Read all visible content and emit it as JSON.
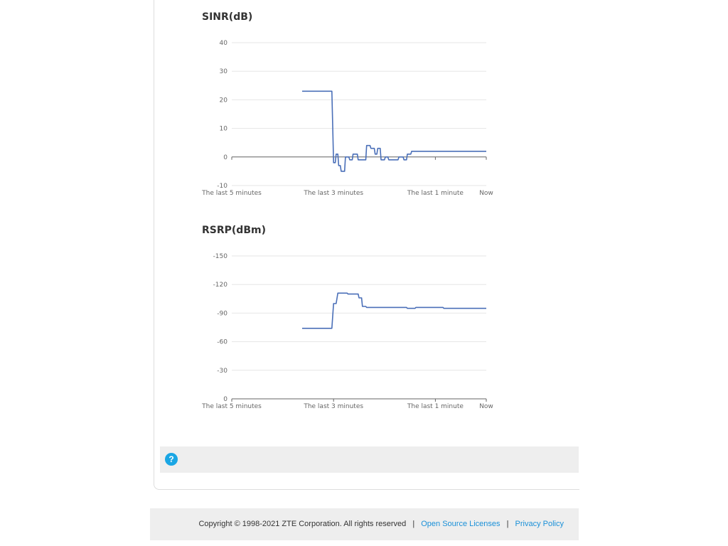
{
  "charts": [
    {
      "id": "sinr",
      "title": "SINR(dB)",
      "type": "line",
      "ylim": [
        -10,
        40
      ],
      "yticks": [
        40,
        30,
        20,
        10,
        0,
        -10
      ],
      "xticks": [
        "The last 5 minutes",
        "The last 3 minutes",
        "The last 1 minute",
        "Now"
      ],
      "xlim": [
        -300,
        0
      ],
      "series_color": "#4a6fb8",
      "series": [
        {
          "points": [
            [
              -217,
              23
            ],
            [
              -182,
              23
            ],
            [
              -180,
              -2
            ],
            [
              -178,
              -2
            ],
            [
              -177,
              1
            ],
            [
              -175,
              1
            ],
            [
              -174,
              -3
            ],
            [
              -172,
              -3
            ],
            [
              -171,
              -5
            ],
            [
              -167,
              -5
            ],
            [
              -166,
              0
            ],
            [
              -162,
              0
            ],
            [
              -161,
              -1
            ],
            [
              -158,
              -1
            ],
            [
              -157,
              1
            ],
            [
              -152,
              1
            ],
            [
              -151,
              -1
            ],
            [
              -142,
              -1
            ],
            [
              -141,
              4
            ],
            [
              -137,
              4
            ],
            [
              -136,
              3
            ],
            [
              -132,
              3
            ],
            [
              -131,
              1
            ],
            [
              -129,
              1
            ],
            [
              -128,
              3
            ],
            [
              -125,
              3
            ],
            [
              -124,
              -1
            ],
            [
              -120,
              -1
            ],
            [
              -119,
              0
            ],
            [
              -116,
              0
            ],
            [
              -115,
              -1
            ],
            [
              -104,
              -1
            ],
            [
              -103,
              0
            ],
            [
              -98,
              0
            ],
            [
              -97,
              -1
            ],
            [
              -94,
              -1
            ],
            [
              -93,
              1
            ],
            [
              -89,
              1
            ],
            [
              -88,
              2
            ],
            [
              -80,
              2
            ],
            [
              -79,
              2
            ],
            [
              -60,
              2
            ],
            [
              0,
              2
            ]
          ]
        }
      ]
    },
    {
      "id": "rsrp",
      "title": "RSRP(dBm)",
      "type": "line",
      "ylim": [
        0,
        -150
      ],
      "yticks": [
        -150,
        -120,
        -90,
        -60,
        -30,
        0
      ],
      "xticks": [
        "The last 5 minutes",
        "The last 3 minutes",
        "The last 1 minute",
        "Now"
      ],
      "xlim": [
        -300,
        0
      ],
      "series_color": "#4a6fb8",
      "series": [
        {
          "points": [
            [
              -217,
              -74
            ],
            [
              -182,
              -74
            ],
            [
              -180,
              -100
            ],
            [
              -177,
              -100
            ],
            [
              -175,
              -111
            ],
            [
              -164,
              -111
            ],
            [
              -163,
              -110
            ],
            [
              -151,
              -110
            ],
            [
              -150,
              -106
            ],
            [
              -147,
              -106
            ],
            [
              -146,
              -97
            ],
            [
              -142,
              -97
            ],
            [
              -141,
              -96
            ],
            [
              -94,
              -96
            ],
            [
              -93,
              -95
            ],
            [
              -84,
              -95
            ],
            [
              -83,
              -96
            ],
            [
              -51,
              -96
            ],
            [
              -50,
              -95
            ],
            [
              0,
              -95
            ]
          ]
        }
      ]
    }
  ],
  "help": {
    "icon": "help-icon",
    "glyph": "?",
    "color": "#1aa6e4"
  },
  "footer": {
    "copyright": "Copyright © 1998-2021 ZTE Corporation. All rights reserved",
    "separator": "|",
    "open_source_label": "Open Source Licenses",
    "privacy_label": "Privacy Policy"
  }
}
